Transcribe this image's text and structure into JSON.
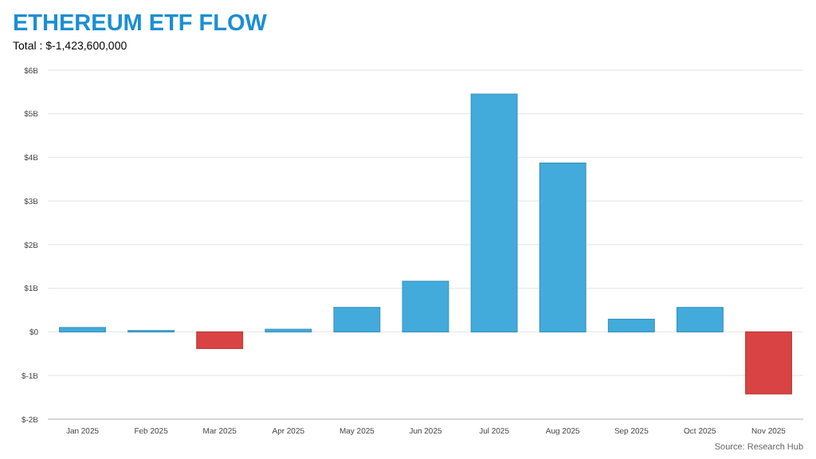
{
  "chart_data": {
    "type": "bar",
    "title": "ETHEREUM ETF FLOW",
    "subtitle": "Total : $-1,423,600,000",
    "annotations": [
      "Source: Research Hub"
    ],
    "categories": [
      "Jan 2025",
      "Feb 2025",
      "Mar 2025",
      "Apr 2025",
      "May 2025",
      "Jun 2025",
      "Jul 2025",
      "Aug 2025",
      "Sep 2025",
      "Oct 2025",
      "Nov 2025"
    ],
    "values": [
      0.1,
      0.03,
      -0.38,
      0.06,
      0.56,
      1.16,
      5.45,
      3.87,
      0.29,
      0.56,
      -1.42
    ],
    "colors": [
      "#42abdb",
      "#42abdb",
      "#d94343",
      "#42abdb",
      "#42abdb",
      "#42abdb",
      "#42abdb",
      "#42abdb",
      "#42abdb",
      "#42abdb",
      "#d94343"
    ],
    "ylim": [
      -2,
      6
    ],
    "yticks": [
      {
        "value": -2,
        "label": "$-2B"
      },
      {
        "value": -1,
        "label": "$-1B"
      },
      {
        "value": 0,
        "label": "$0"
      },
      {
        "value": 1,
        "label": "$1B"
      },
      {
        "value": 2,
        "label": "$2B"
      },
      {
        "value": 3,
        "label": "$3B"
      },
      {
        "value": 4,
        "label": "$4B"
      },
      {
        "value": 5,
        "label": "$5B"
      },
      {
        "value": 6,
        "label": "$6B"
      }
    ],
    "grid": "y"
  }
}
